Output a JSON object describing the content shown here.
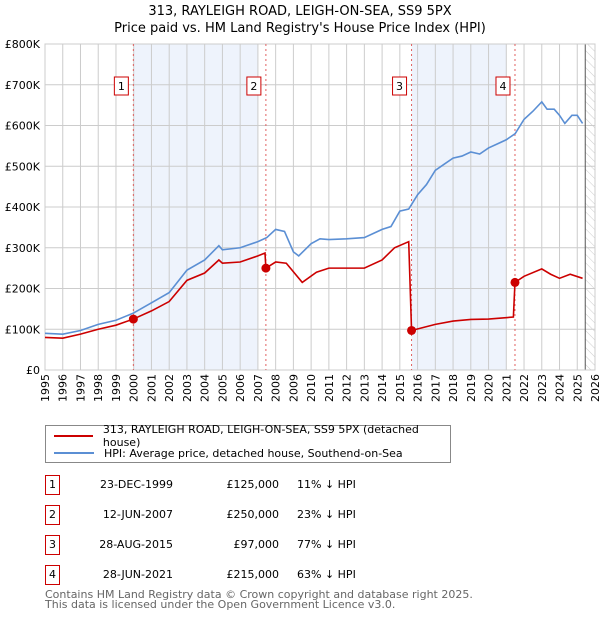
{
  "chart_data": {
    "type": "line",
    "title": "313, RAYLEIGH ROAD, LEIGH-ON-SEA, SS9 5PX",
    "subtitle": "Price paid vs. HM Land Registry's House Price Index (HPI)",
    "xlim": [
      1995,
      2026
    ],
    "ylim": [
      0,
      800000
    ],
    "x_ticks": [
      1995,
      1996,
      1997,
      1998,
      1999,
      2000,
      2001,
      2002,
      2003,
      2004,
      2005,
      2006,
      2007,
      2008,
      2009,
      2010,
      2011,
      2012,
      2013,
      2014,
      2015,
      2016,
      2017,
      2018,
      2019,
      2020,
      2021,
      2022,
      2023,
      2024,
      2025,
      2026
    ],
    "y_ticks": [
      {
        "v": 0,
        "label": "£0"
      },
      {
        "v": 100000,
        "label": "£100K"
      },
      {
        "v": 200000,
        "label": "£200K"
      },
      {
        "v": 300000,
        "label": "£300K"
      },
      {
        "v": 400000,
        "label": "£400K"
      },
      {
        "v": 500000,
        "label": "£500K"
      },
      {
        "v": 600000,
        "label": "£600K"
      },
      {
        "v": 700000,
        "label": "£700K"
      },
      {
        "v": 800000,
        "label": "£800K"
      }
    ],
    "grid": true,
    "data_end_year": 2025.45,
    "colors": {
      "property": "#cc0000",
      "hpi": "#5b8fd4",
      "shade": "#eef3fc"
    },
    "series": [
      {
        "name": "313, RAYLEIGH ROAD, LEIGH-ON-SEA, SS9 5PX (detached house)",
        "key": "property",
        "points": [
          [
            1995,
            80000
          ],
          [
            1996,
            78000
          ],
          [
            1997,
            88000
          ],
          [
            1998,
            100000
          ],
          [
            1999,
            110000
          ],
          [
            1999.98,
            125000
          ],
          [
            2001,
            145000
          ],
          [
            2002,
            168000
          ],
          [
            2003,
            220000
          ],
          [
            2004,
            238000
          ],
          [
            2004.8,
            270000
          ],
          [
            2005,
            262000
          ],
          [
            2006,
            265000
          ],
          [
            2007,
            280000
          ],
          [
            2007.4,
            287000
          ],
          [
            2007.45,
            250000
          ],
          [
            2008,
            265000
          ],
          [
            2008.6,
            262000
          ],
          [
            2009.5,
            215000
          ],
          [
            2010.3,
            240000
          ],
          [
            2011,
            250000
          ],
          [
            2012,
            250000
          ],
          [
            2013,
            250000
          ],
          [
            2014,
            270000
          ],
          [
            2014.7,
            300000
          ],
          [
            2015.5,
            315000
          ],
          [
            2015.66,
            97000
          ],
          [
            2017,
            112000
          ],
          [
            2018,
            120000
          ],
          [
            2019,
            124000
          ],
          [
            2020,
            125000
          ],
          [
            2021.4,
            130000
          ],
          [
            2021.49,
            215000
          ],
          [
            2022,
            230000
          ],
          [
            2023,
            248000
          ],
          [
            2023.5,
            235000
          ],
          [
            2024,
            225000
          ],
          [
            2024.6,
            235000
          ],
          [
            2025.3,
            225000
          ]
        ]
      },
      {
        "name": "HPI: Average price, detached house, Southend-on-Sea",
        "key": "hpi",
        "points": [
          [
            1995,
            90000
          ],
          [
            1996,
            88000
          ],
          [
            1997,
            97000
          ],
          [
            1998,
            112000
          ],
          [
            1999,
            122000
          ],
          [
            2000,
            140000
          ],
          [
            2001,
            165000
          ],
          [
            2002,
            190000
          ],
          [
            2003,
            245000
          ],
          [
            2004,
            270000
          ],
          [
            2004.8,
            305000
          ],
          [
            2005,
            295000
          ],
          [
            2006,
            300000
          ],
          [
            2007,
            315000
          ],
          [
            2007.5,
            325000
          ],
          [
            2008,
            345000
          ],
          [
            2008.5,
            340000
          ],
          [
            2009,
            290000
          ],
          [
            2009.3,
            280000
          ],
          [
            2010,
            310000
          ],
          [
            2010.5,
            322000
          ],
          [
            2011,
            320000
          ],
          [
            2012,
            322000
          ],
          [
            2013,
            325000
          ],
          [
            2014,
            345000
          ],
          [
            2014.5,
            352000
          ],
          [
            2015,
            390000
          ],
          [
            2015.5,
            395000
          ],
          [
            2016,
            430000
          ],
          [
            2016.5,
            455000
          ],
          [
            2017,
            490000
          ],
          [
            2017.5,
            505000
          ],
          [
            2018,
            520000
          ],
          [
            2018.5,
            525000
          ],
          [
            2019,
            535000
          ],
          [
            2019.5,
            530000
          ],
          [
            2020,
            545000
          ],
          [
            2020.5,
            555000
          ],
          [
            2021,
            565000
          ],
          [
            2021.5,
            580000
          ],
          [
            2022,
            615000
          ],
          [
            2022.5,
            635000
          ],
          [
            2023,
            658000
          ],
          [
            2023.3,
            640000
          ],
          [
            2023.7,
            640000
          ],
          [
            2024,
            625000
          ],
          [
            2024.3,
            605000
          ],
          [
            2024.7,
            625000
          ],
          [
            2025,
            625000
          ],
          [
            2025.3,
            605000
          ]
        ]
      }
    ],
    "sales": [
      {
        "n": "1",
        "x": 1999.98,
        "y": 125000,
        "date": "23-DEC-1999",
        "price": "£125,000",
        "pct": "11% ↓ HPI"
      },
      {
        "n": "2",
        "x": 2007.45,
        "y": 250000,
        "date": "12-JUN-2007",
        "price": "£250,000",
        "pct": "23% ↓ HPI"
      },
      {
        "n": "3",
        "x": 2015.66,
        "y": 97000,
        "date": "28-AUG-2015",
        "price": "£97,000",
        "pct": "77% ↓ HPI"
      },
      {
        "n": "4",
        "x": 2021.49,
        "y": 215000,
        "date": "28-JUN-2021",
        "price": "£215,000",
        "pct": "63% ↓ HPI"
      }
    ],
    "shaded": [
      [
        1999.98,
        2007.0
      ],
      [
        2015.66,
        2021.0
      ]
    ]
  },
  "footer": {
    "line1": "Contains HM Land Registry data © Crown copyright and database right 2025.",
    "line2": "This data is licensed under the Open Government Licence v3.0."
  }
}
